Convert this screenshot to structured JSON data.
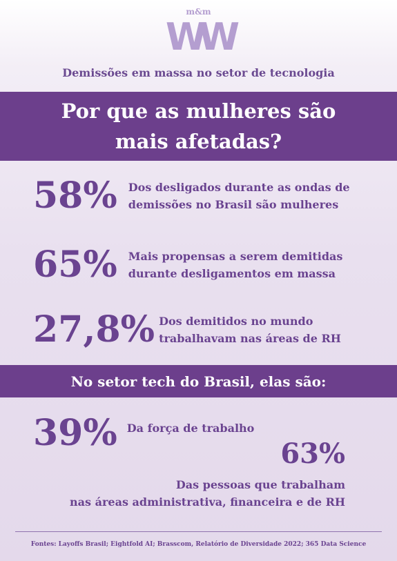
{
  "brand": {
    "small": "m&m",
    "big": "WW"
  },
  "kicker": "Demissões em massa no setor de tecnologia",
  "headline": {
    "line1": "Por que as mulheres são",
    "line2": "mais afetadas?"
  },
  "stats": [
    {
      "value": "58%",
      "line1": "Dos desligados durante as ondas de",
      "line2": "demissões no Brasil são mulheres"
    },
    {
      "value": "65%",
      "line1": "Mais propensas a serem demitidas",
      "line2": "durante desligamentos em massa"
    },
    {
      "value": "27,8%",
      "line1": "Dos demitidos no mundo",
      "line2": "trabalhavam nas áreas de RH"
    }
  ],
  "subheading": "No setor tech do Brasil, elas são:",
  "tech_stats": [
    {
      "value": "39%",
      "line1": "Da força de trabalho"
    },
    {
      "value": "63%",
      "line1": "Das pessoas que trabalham",
      "line2": "nas áreas administrativa, financeira e de RH"
    }
  ],
  "sources": "Fontes: Layoffs Brasil; Eightfold AI; Brasscom, Relatório de Diversidade 2022; 365 Data Science",
  "colors": {
    "accent": "#6c3f8c",
    "text": "#6a4390",
    "logo": "#b49ed0"
  }
}
